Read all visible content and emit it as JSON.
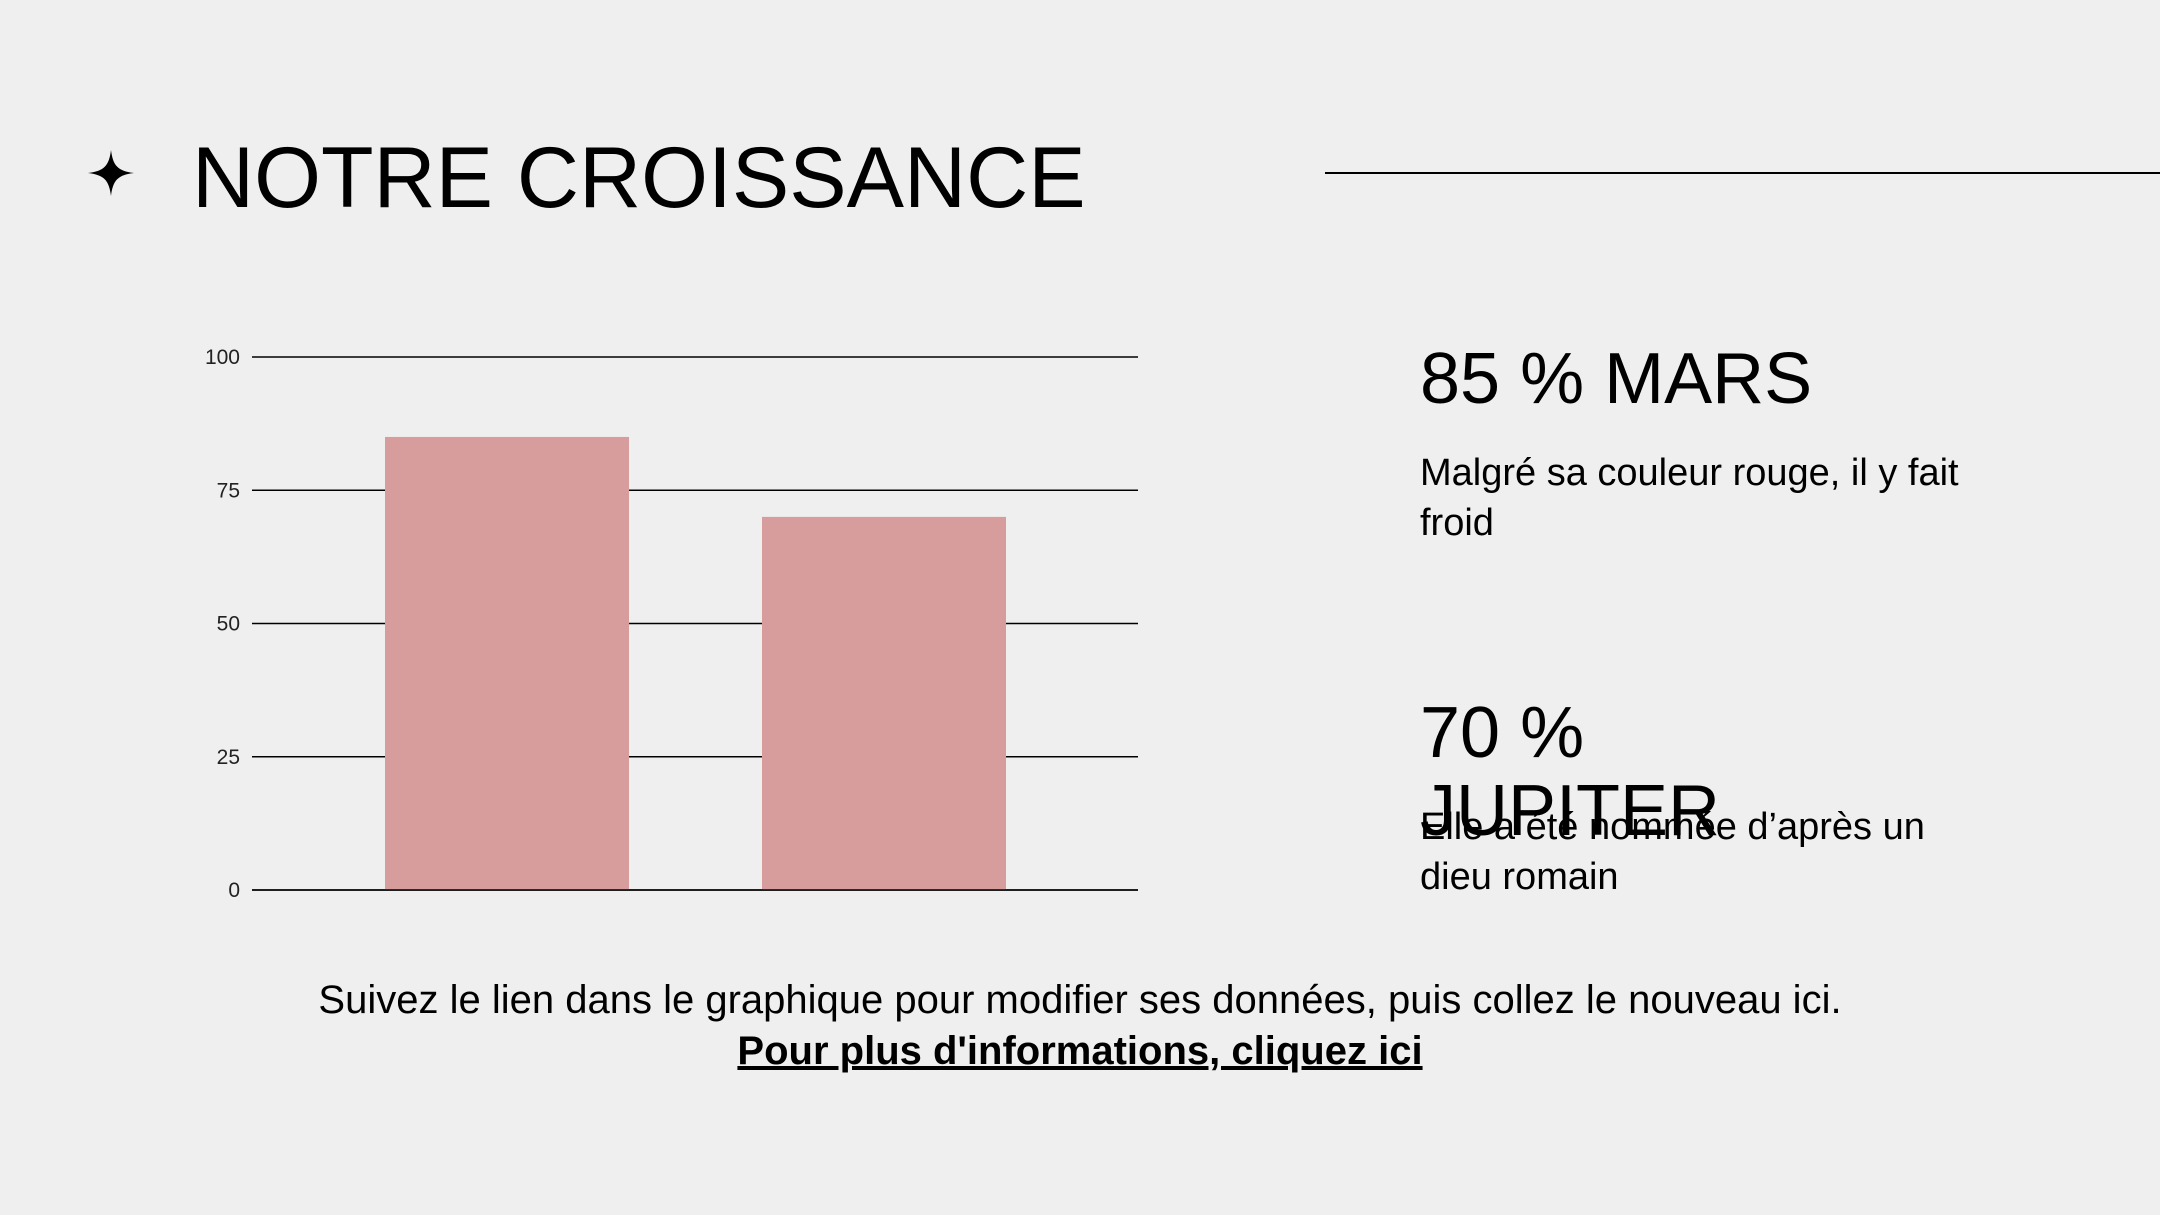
{
  "slide": {
    "title": "NOTRE CROISSANCE",
    "star_icon": "four-point-star-icon"
  },
  "stats": [
    {
      "heading": "85 % MARS",
      "description": "Malgré sa couleur rouge, il y fait froid"
    },
    {
      "heading": "70 % JUPITER",
      "description": "Elle a été nommée d’après un dieu romain"
    }
  ],
  "footer": {
    "text": "Suivez le lien dans le graphique pour modifier ses données, puis collez le nouveau ici. ",
    "link_label": "Pour plus d'informations, cliquez ici"
  },
  "colors": {
    "background": "#efefef",
    "bar": "#d69d9c",
    "text": "#000000"
  },
  "chart_data": {
    "type": "bar",
    "categories": [
      "",
      ""
    ],
    "values": [
      85,
      70
    ],
    "title": "",
    "xlabel": "",
    "ylabel": "",
    "ylim": [
      0,
      100
    ],
    "yticks": [
      0,
      25,
      50,
      75,
      100
    ],
    "grid": true,
    "legend": "none"
  }
}
